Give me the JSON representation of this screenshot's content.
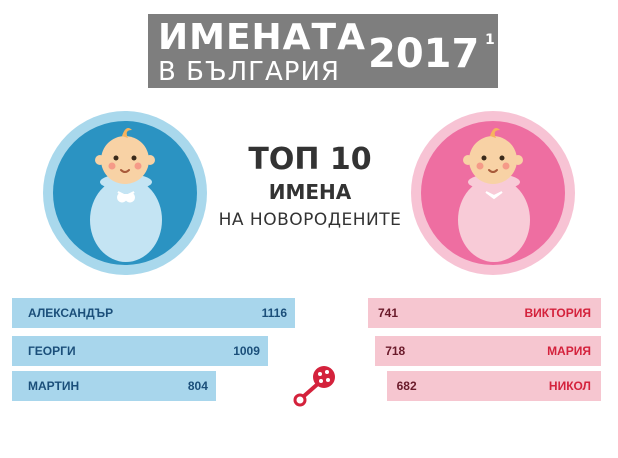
{
  "header": {
    "title_line1": "ИМЕНАТА",
    "title_line2": "В БЪЛГАРИЯ",
    "year": "2017",
    "footnote_mark": "1"
  },
  "headline": {
    "line1": "ТОП 10",
    "line2": "ИМЕНА",
    "line3": "НА НОВОРОДЕНИТЕ"
  },
  "colors": {
    "banner": "#7e7e7e",
    "boy_circle": "#2b93c2",
    "girl_circle": "#ee6ea1",
    "boy_bar": "#a8d6ec",
    "girl_bar": "#f6c6d0",
    "rattle": "#d4223c"
  },
  "icons": [
    "baby-boy-icon",
    "baby-girl-icon",
    "rattle-icon"
  ],
  "chart_data": {
    "type": "bar",
    "title": "ТОП 10 ИМЕНА НА НОВОРОДЕНИТЕ",
    "series": [
      {
        "name": "boys",
        "categories": [
          "АЛЕКСАНДЪР",
          "ГЕОРГИ",
          "МАРТИН"
        ],
        "values": [
          1116,
          1009,
          804
        ],
        "value_labels": [
          "1116",
          "1009",
          "804"
        ]
      },
      {
        "name": "girls",
        "categories": [
          "ВИКТОРИЯ",
          "МАРИЯ",
          "НИКОЛ"
        ],
        "values": [
          741,
          718,
          682
        ],
        "value_labels": [
          "741",
          "718",
          "682"
        ]
      }
    ]
  }
}
